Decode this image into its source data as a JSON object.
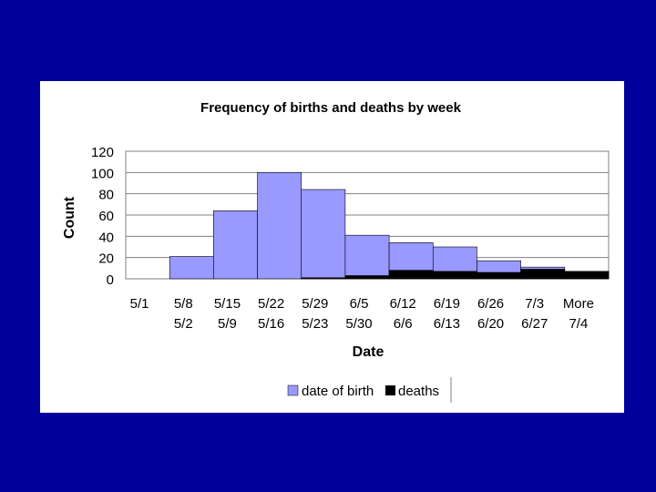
{
  "colors": {
    "background": "#00009a",
    "panel": "#ffffff",
    "births": "#9999ff",
    "deaths": "#000000",
    "gridline": "#808080"
  },
  "chart_data": {
    "type": "bar",
    "title": "Frequency of births and deaths  by week",
    "xlabel": "Date",
    "ylabel": "Count",
    "ylim": [
      0,
      120
    ],
    "yticks": [
      0,
      20,
      40,
      60,
      80,
      100,
      120
    ],
    "grid": true,
    "legend": "bottom-center",
    "categories": [
      [
        "5/1",
        ""
      ],
      [
        "5/8",
        "5/2"
      ],
      [
        "5/15",
        "5/9"
      ],
      [
        "5/22",
        "5/16"
      ],
      [
        "5/29",
        "5/23"
      ],
      [
        "6/5",
        "5/30"
      ],
      [
        "6/12",
        "6/6"
      ],
      [
        "6/19",
        "6/13"
      ],
      [
        "6/26",
        "6/20"
      ],
      [
        "7/3",
        "6/27"
      ],
      [
        "More",
        "7/4"
      ]
    ],
    "series": [
      {
        "name": "date of birth",
        "values": [
          0,
          21,
          64,
          100,
          84,
          41,
          34,
          30,
          17,
          11,
          7
        ]
      },
      {
        "name": "deaths",
        "values": [
          0,
          0,
          0,
          0,
          1,
          3,
          8,
          7,
          6,
          9,
          7
        ]
      }
    ]
  }
}
